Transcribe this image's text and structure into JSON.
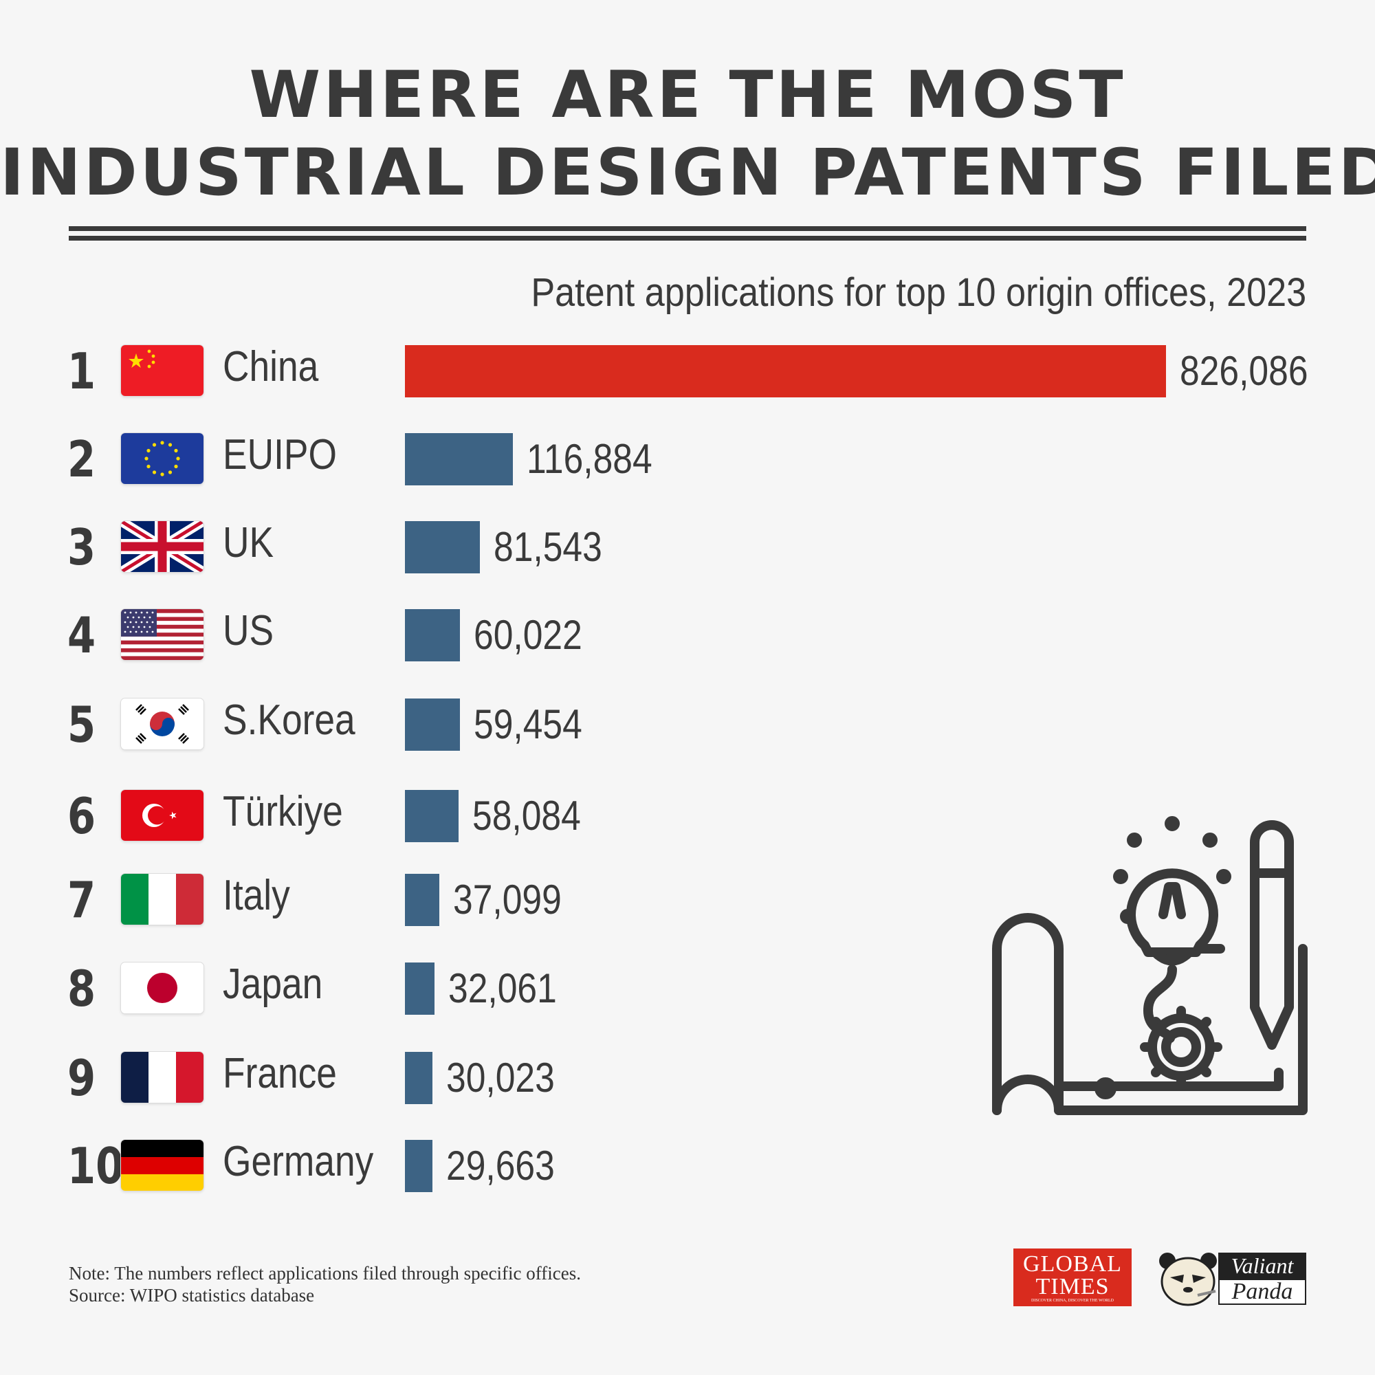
{
  "title_line1": "WHERE ARE THE MOST",
  "title_line2": "INDUSTRIAL DESIGN PATENTS FILED?",
  "colors": {
    "highlight": "#d92b1e",
    "bar": "#3d6384",
    "text": "#3a3a3a",
    "background": "#f6f6f6"
  },
  "chart_data": {
    "type": "bar",
    "orientation": "horizontal",
    "title": "Patent applications for top 10 origin offices, 2023",
    "ranks": [
      "1",
      "2",
      "3",
      "4",
      "5",
      "6",
      "7",
      "8",
      "9",
      "10"
    ],
    "categories": [
      "China",
      "EUIPO",
      "UK",
      "US",
      "S.Korea",
      "Türkiye",
      "Italy",
      "Japan",
      "France",
      "Germany"
    ],
    "values": [
      826086,
      116884,
      81543,
      60022,
      59454,
      58084,
      37099,
      32061,
      30023,
      29663
    ],
    "value_labels": [
      "826,086",
      "116,884",
      "81,543",
      "60,022",
      "59,454",
      "58,084",
      "37,099",
      "32,061",
      "30,023",
      "29,663"
    ],
    "xlim": [
      0,
      826086
    ]
  },
  "footer": {
    "note": "Note: The numbers reflect applications filed through specific offices.",
    "source": "Source: WIPO statistics database"
  },
  "logos": {
    "gt_line1": "GLOBAL",
    "gt_line2": "TIMES",
    "gt_tagline": "DISCOVER CHINA, DISCOVER THE WORLD",
    "vp_word1": "Valiant",
    "vp_word2": "Panda"
  }
}
